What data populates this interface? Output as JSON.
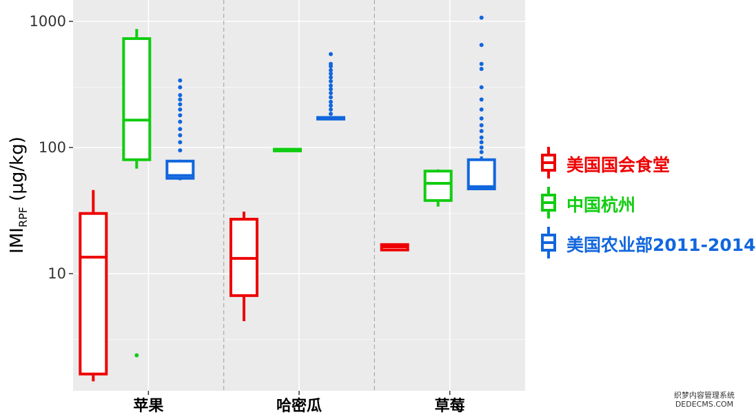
{
  "chart_data": {
    "type": "boxplot",
    "ylabel_main": "IMI",
    "ylabel_sub": "RPF",
    "ylabel_unit": " (μg/kg)",
    "y_scale": "log",
    "ylim": [
      1.0,
      1500
    ],
    "y_ticks": [
      10,
      100,
      1000
    ],
    "y_tick_labels": [
      "10",
      "100",
      "1000"
    ],
    "grid": true,
    "categories": [
      "苹果",
      "哈密瓜",
      "草莓"
    ],
    "series": [
      {
        "name": "美国国会食堂",
        "color": "#ee0000",
        "boxes": [
          {
            "category": "苹果",
            "whisker_low": 1.4,
            "q1": 1.6,
            "median": 13.5,
            "q3": 30,
            "whisker_high": 46,
            "outliers": []
          },
          {
            "category": "哈密瓜",
            "whisker_low": 4.2,
            "q1": 6.7,
            "median": 13.2,
            "q3": 27,
            "whisker_high": 31,
            "outliers": []
          },
          {
            "category": "草莓",
            "whisker_low": 15.3,
            "q1": 15.4,
            "median": 16.3,
            "q3": 17.0,
            "whisker_high": 17.2,
            "outliers": []
          }
        ]
      },
      {
        "name": "中国杭州",
        "color": "#11cc11",
        "boxes": [
          {
            "category": "苹果",
            "whisker_low": 68,
            "q1": 80,
            "median": 165,
            "q3": 730,
            "whisker_high": 870,
            "outliers": [
              2.25
            ]
          },
          {
            "category": "哈密瓜",
            "whisker_low": 93,
            "q1": 94,
            "median": 96,
            "q3": 97,
            "whisker_high": 98,
            "outliers": []
          },
          {
            "category": "草莓",
            "whisker_low": 34,
            "q1": 38,
            "median": 52,
            "q3": 65,
            "whisker_high": 67,
            "outliers": []
          }
        ]
      },
      {
        "name": "美国农业部2011-2014",
        "color": "#1166dd",
        "boxes": [
          {
            "category": "苹果",
            "whisker_low": 55,
            "q1": 57,
            "median": 60,
            "q3": 78,
            "whisker_high": 80,
            "outliers": [
              95,
              110,
              125,
              140,
              160,
              180,
              200,
              220,
              240,
              260,
              300,
              340
            ]
          },
          {
            "category": "哈密瓜",
            "whisker_low": 166,
            "q1": 168,
            "median": 170,
            "q3": 173,
            "whisker_high": 175,
            "outliers": [
              185,
              200,
              215,
              230,
              250,
              270,
              290,
              310,
              335,
              360,
              385,
              410,
              440,
              460,
              550
            ]
          },
          {
            "category": "草莓",
            "whisker_low": 46,
            "q1": 47,
            "median": 49,
            "q3": 80,
            "whisker_high": 85,
            "outliers": [
              92,
              100,
              110,
              120,
              135,
              150,
              170,
              200,
              240,
              300,
              420,
              460,
              650,
              1070
            ]
          }
        ]
      }
    ],
    "legend_position": "right"
  },
  "watermark": {
    "line1": "织梦内容管理系统",
    "line2": "DEDECMS.COM"
  }
}
